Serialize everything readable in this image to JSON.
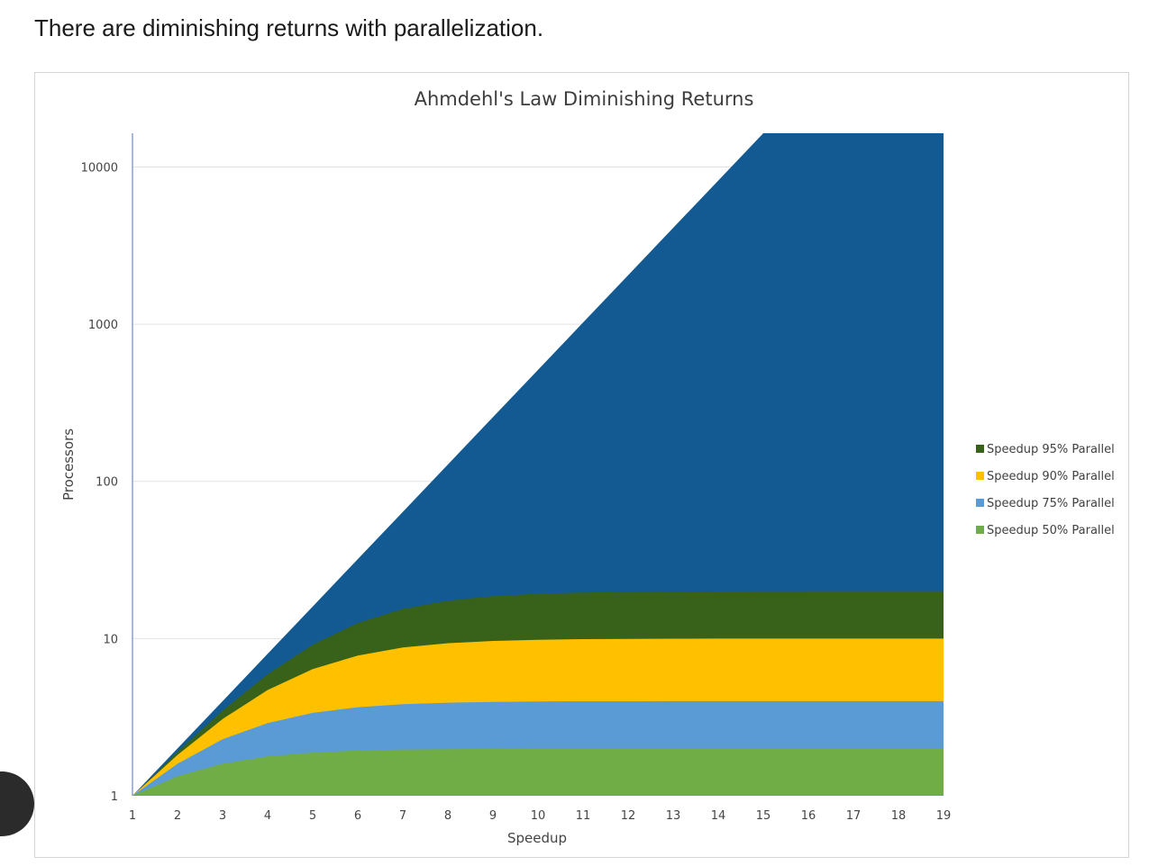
{
  "page": {
    "heading": "There are diminishing returns with parallelization."
  },
  "chart_data": {
    "type": "area",
    "title": "Ahmdehl's Law Diminishing Returns",
    "xlabel": "Speedup",
    "ylabel": "Processors",
    "y_scale": "log",
    "ylim": [
      1,
      16384
    ],
    "y_ticks": [
      1,
      10,
      100,
      1000,
      10000
    ],
    "y_tick_labels": [
      "1",
      "10",
      "100",
      "1000",
      "10000"
    ],
    "categories": [
      "1",
      "2",
      "3",
      "4",
      "5",
      "6",
      "7",
      "8",
      "9",
      "10",
      "11",
      "12",
      "13",
      "14",
      "15",
      "16",
      "17",
      "18",
      "19"
    ],
    "grid": true,
    "legend_position": "right",
    "background_series": {
      "color": "#135a93",
      "values": [
        1,
        2,
        4,
        8,
        16,
        32,
        64,
        128,
        256,
        512,
        1024,
        2048,
        4096,
        8192,
        16384,
        16384,
        16384,
        16384,
        16384
      ]
    },
    "series": [
      {
        "name": "Speedup 95% Parallel",
        "color": "#38611a",
        "values": [
          1,
          1.9,
          3.48,
          5.93,
          9.14,
          12.55,
          15.42,
          17.41,
          18.62,
          19.28,
          19.63,
          19.81,
          19.9,
          19.95,
          19.98,
          19.99,
          19.99,
          20,
          20
        ]
      },
      {
        "name": "Speedup 90% Parallel",
        "color": "#ffc000",
        "values": [
          1,
          1.82,
          3.08,
          4.71,
          6.4,
          7.8,
          8.77,
          9.34,
          9.66,
          9.83,
          9.91,
          9.96,
          9.98,
          9.99,
          9.99,
          10,
          10,
          10,
          10
        ]
      },
      {
        "name": "Speedup 75% Parallel",
        "color": "#5b9bd5",
        "values": [
          1,
          1.6,
          2.29,
          2.9,
          3.37,
          3.66,
          3.82,
          3.91,
          3.95,
          3.98,
          3.99,
          3.99,
          4,
          4,
          4,
          4,
          4,
          4,
          4
        ]
      },
      {
        "name": "Speedup 50% Parallel",
        "color": "#70ad47",
        "values": [
          1,
          1.33,
          1.6,
          1.78,
          1.88,
          1.94,
          1.97,
          1.98,
          1.99,
          2,
          2,
          2,
          2,
          2,
          2,
          2,
          2,
          2,
          2
        ]
      }
    ]
  }
}
